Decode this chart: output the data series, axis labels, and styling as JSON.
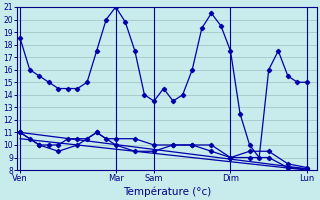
{
  "background_color": "#c8ecec",
  "grid_color": "#aacccc",
  "line_color": "#0000aa",
  "marker_color": "#0000aa",
  "xlabel": "Température (°c)",
  "ylim": [
    8,
    21
  ],
  "yticks": [
    8,
    9,
    10,
    11,
    12,
    13,
    14,
    15,
    16,
    17,
    18,
    19,
    20,
    21
  ],
  "day_labels": [
    "Ven",
    "Mar",
    "Sam",
    "Dim",
    "Lun"
  ],
  "day_positions": [
    0,
    10,
    14,
    22,
    30
  ],
  "vline_positions": [
    0,
    10,
    14,
    22,
    30
  ],
  "xlim": [
    -0.3,
    31.0
  ],
  "series1_x": [
    0,
    1,
    2,
    3,
    4,
    5,
    6,
    7,
    8,
    9,
    10,
    11,
    12,
    13,
    14,
    15,
    16,
    17,
    18,
    19,
    20,
    21,
    22,
    23,
    24,
    25,
    26,
    27,
    28,
    29,
    30
  ],
  "series1_y": [
    18.5,
    16.0,
    15.5,
    15.0,
    14.5,
    14.5,
    14.5,
    15.0,
    17.5,
    20.0,
    21.0,
    19.8,
    17.5,
    14.0,
    13.5,
    14.5,
    13.5,
    14.0,
    16.0,
    19.3,
    20.5,
    19.5,
    17.5,
    12.5,
    10.0,
    9.0,
    16.0,
    17.5,
    15.5,
    15.0,
    15.0
  ],
  "series2_x": [
    0,
    1,
    2,
    3,
    4,
    5,
    6,
    7,
    8,
    9,
    10,
    12,
    14,
    16,
    18,
    20,
    22,
    24,
    26,
    28,
    30
  ],
  "series2_y": [
    11.0,
    10.5,
    10.0,
    10.0,
    10.0,
    10.5,
    10.5,
    10.5,
    11.0,
    10.5,
    10.5,
    10.5,
    10.0,
    10.0,
    10.0,
    10.0,
    9.0,
    9.5,
    9.5,
    8.5,
    8.2
  ],
  "series3_x": [
    0,
    2,
    4,
    6,
    8,
    10,
    12,
    14,
    16,
    18,
    20,
    22,
    24,
    26,
    28,
    30
  ],
  "series3_y": [
    11.0,
    10.0,
    9.5,
    10.0,
    11.0,
    10.0,
    9.5,
    9.5,
    10.0,
    10.0,
    9.5,
    9.0,
    9.0,
    9.0,
    8.2,
    8.1
  ],
  "series4_x": [
    0,
    30
  ],
  "series4_y": [
    11.0,
    8.1
  ],
  "series5_x": [
    0,
    30
  ],
  "series5_y": [
    10.5,
    8.0
  ]
}
